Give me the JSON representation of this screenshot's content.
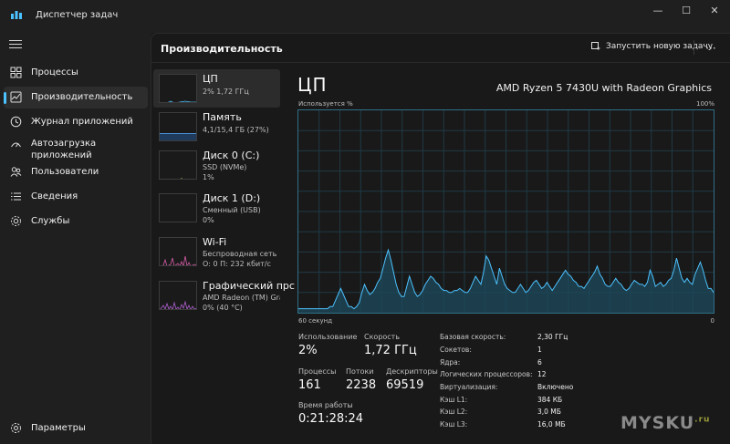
{
  "window": {
    "title": "Диспетчер задач",
    "buttons": {
      "minimize": "—",
      "maximize": "☐",
      "close": "✕"
    }
  },
  "sidebar": {
    "items": [
      {
        "label": "Процессы",
        "icon": "processes-icon"
      },
      {
        "label": "Производительность",
        "icon": "performance-icon"
      },
      {
        "label": "Журнал приложений",
        "icon": "history-icon"
      },
      {
        "label": "Автозагрузка\nприложений",
        "icon": "startup-icon"
      },
      {
        "label": "Пользователи",
        "icon": "users-icon"
      },
      {
        "label": "Сведения",
        "icon": "details-icon"
      },
      {
        "label": "Службы",
        "icon": "services-icon"
      }
    ],
    "settings_label": "Параметры"
  },
  "header": {
    "title": "Производительность",
    "run_task": "Запустить новую задачу",
    "more": "···"
  },
  "devices": [
    {
      "name": "ЦП",
      "sub1": "2%  1,72 ГГц",
      "sub2": ""
    },
    {
      "name": "Память",
      "sub1": "4,1/15,4 ГБ (27%)",
      "sub2": ""
    },
    {
      "name": "Диск 0 (C:)",
      "sub1": "SSD (NVMe)",
      "sub2": "1%"
    },
    {
      "name": "Диск 1 (D:)",
      "sub1": "Сменный (USB)",
      "sub2": "0%"
    },
    {
      "name": "Wi-Fi",
      "sub1": "Беспроводная сеть",
      "sub2": "О: 0  П: 232 кбит/с"
    },
    {
      "name": "Графический прс",
      "sub1": "AMD Radeon (TM) Grap",
      "sub2": "0%  (40 °C)"
    }
  ],
  "cpu": {
    "title": "ЦП",
    "model": "AMD Ryzen 5 7430U with Radeon Graphics",
    "usage_label": "Используется %",
    "max_label": "100%",
    "time_label": "60 секунд",
    "min_label": "0",
    "graph_color": "#4cc2ff",
    "graph_values": [
      2,
      2,
      2,
      2,
      2,
      2,
      2,
      2,
      2,
      2,
      2,
      2,
      3,
      3,
      6,
      9,
      12,
      9,
      6,
      3,
      3,
      2,
      3,
      5,
      10,
      14,
      11,
      9,
      10,
      12,
      15,
      17,
      22,
      27,
      31,
      26,
      20,
      14,
      10,
      8,
      8,
      13,
      18,
      14,
      10,
      8,
      9,
      11,
      14,
      16,
      18,
      17,
      15,
      14,
      12,
      11,
      11,
      10,
      10,
      11,
      11,
      12,
      11,
      10,
      10,
      12,
      15,
      18,
      16,
      14,
      20,
      28,
      26,
      22,
      18,
      14,
      22,
      18,
      14,
      12,
      11,
      10,
      10,
      12,
      14,
      12,
      10,
      11,
      13,
      15,
      16,
      14,
      12,
      13,
      15,
      13,
      11,
      13,
      15,
      17,
      19,
      21,
      19,
      18,
      16,
      15,
      13,
      13,
      12,
      14,
      16,
      18,
      20,
      23,
      19,
      17,
      14,
      13,
      13,
      15,
      17,
      15,
      14,
      12,
      11,
      12,
      14,
      16,
      15,
      14,
      14,
      13,
      15,
      21,
      18,
      13,
      14,
      15,
      13,
      14,
      16,
      17,
      21,
      27,
      22,
      17,
      15,
      17,
      15,
      14,
      19,
      22,
      25,
      21,
      16,
      12,
      12,
      10
    ]
  },
  "stats": {
    "usage_label": "Использование",
    "usage_value": "2%",
    "speed_label": "Скорость",
    "speed_value": "1,72 ГГц",
    "processes_label": "Процессы",
    "processes_value": "161",
    "threads_label": "Потоки",
    "threads_value": "2238",
    "handles_label": "Дескрипторы",
    "handles_value": "69519",
    "uptime_label": "Время работы",
    "uptime_value": "0:21:28:24"
  },
  "specs": [
    {
      "label": "Базовая скорость:",
      "value": "2,30 ГГц"
    },
    {
      "label": "Сокетов:",
      "value": "1"
    },
    {
      "label": "Ядра:",
      "value": "6"
    },
    {
      "label": "Логических процессоров:",
      "value": "12"
    },
    {
      "label": "Виртуализация:",
      "value": "Включено"
    },
    {
      "label": "Кэш L1:",
      "value": "384 КБ"
    },
    {
      "label": "Кэш L2:",
      "value": "3,0 МБ"
    },
    {
      "label": "Кэш L3:",
      "value": "16,0 МБ"
    }
  ],
  "watermark": {
    "text": "MYSKU",
    "suffix": ".ru"
  }
}
